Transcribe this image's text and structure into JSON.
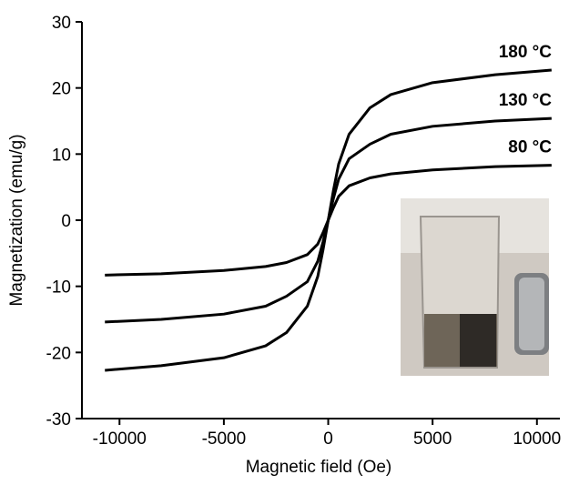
{
  "chart_data": {
    "type": "line",
    "xlabel": "Magnetic field  (Oe)",
    "ylabel": "Magnetization (emu/g)",
    "x": [
      -10700,
      -8000,
      -5000,
      -3000,
      -2000,
      -1000,
      -500,
      -250,
      0,
      250,
      500,
      1000,
      2000,
      3000,
      5000,
      8000,
      10700
    ],
    "series": [
      {
        "name": "180 °C",
        "color": "#000000",
        "values": [
          -22.7,
          -22.0,
          -20.8,
          -19.0,
          -17.0,
          -13.0,
          -8.5,
          -4.5,
          0,
          4.5,
          8.5,
          13.0,
          17.0,
          19.0,
          20.8,
          22.0,
          22.7
        ]
      },
      {
        "name": "130 °C",
        "color": "#000000",
        "values": [
          -15.4,
          -15.0,
          -14.2,
          -13.0,
          -11.5,
          -9.3,
          -6.2,
          -3.3,
          0,
          3.3,
          6.2,
          9.3,
          11.5,
          13.0,
          14.2,
          15.0,
          15.4
        ]
      },
      {
        "name": "80 °C",
        "color": "#000000",
        "values": [
          -8.3,
          -8.1,
          -7.6,
          -7.0,
          -6.4,
          -5.2,
          -3.6,
          -1.9,
          0,
          1.9,
          3.6,
          5.2,
          6.4,
          7.0,
          7.6,
          8.1,
          8.3
        ]
      }
    ],
    "xlim": [
      -11800,
      11100
    ],
    "ylim": [
      -30,
      30
    ],
    "xticks": [
      -10000,
      -5000,
      0,
      5000,
      10000
    ],
    "yticks": [
      -30,
      -20,
      -10,
      0,
      10,
      20,
      30
    ]
  }
}
